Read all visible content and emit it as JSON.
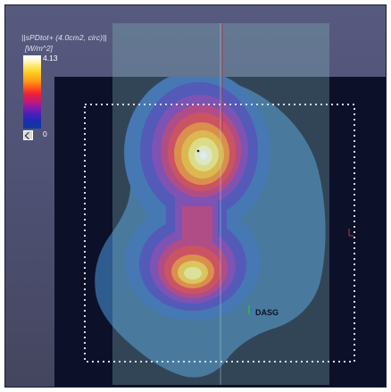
{
  "overlay": {
    "title": "||sPDtot+ (4.0cm2, circ)||",
    "unit": "[W/m^2]"
  },
  "legend": {
    "max_label": "4.13",
    "min_label": "0"
  },
  "sensor": {
    "label": "DASG"
  },
  "colors": {
    "background": "#4f5175",
    "substrate": "#0d1029",
    "shield": "#7fb2b8",
    "outer_field": "#2f5c8e",
    "peak": "#ffffff"
  },
  "icons": {
    "legend_toggle": "toggle-icon",
    "axis_marker": "axis-marker-icon"
  }
}
